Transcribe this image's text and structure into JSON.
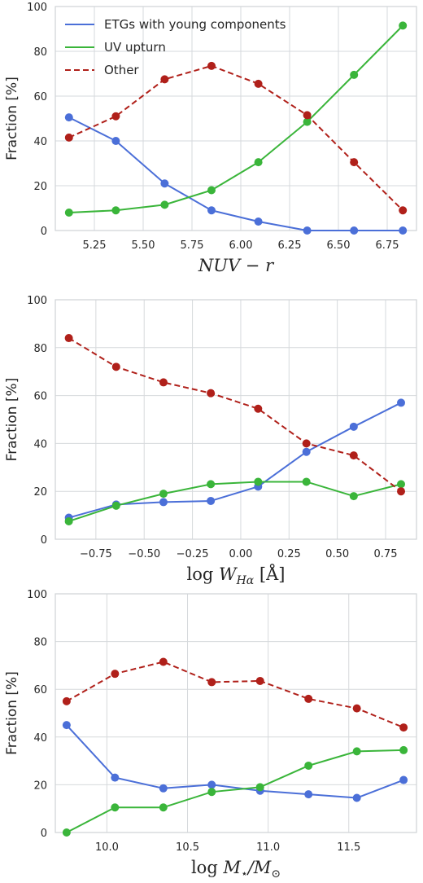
{
  "colors": {
    "etg": "#4b6fd8",
    "uv": "#3ab53a",
    "other": "#b0201a",
    "grid": "#d6d9dc",
    "axis": "#cfd3d6"
  },
  "legend": {
    "placement": "upper-left",
    "entries": [
      {
        "label": "ETGs with young components",
        "series": 0,
        "style": "solid"
      },
      {
        "label": "UV upturn",
        "series": 1,
        "style": "solid"
      },
      {
        "label": "Other",
        "series": 2,
        "style": "dashed"
      }
    ]
  },
  "chart_data": [
    {
      "type": "line",
      "ylabel": "Fraction [%]",
      "xlabel_parts": [
        {
          "text": "NUV",
          "italic": true
        },
        {
          "text": " − ",
          "italic": false
        },
        {
          "text": "r",
          "italic": true
        }
      ],
      "ylim": [
        0,
        100
      ],
      "xlim": [
        5.05,
        6.9
      ],
      "yticks": [
        0,
        20,
        40,
        60,
        80,
        100
      ],
      "yticklabels": [
        "0",
        "20",
        "40",
        "60",
        "80",
        "100"
      ],
      "xticks": [
        5.25,
        5.5,
        5.75,
        6.0,
        6.25,
        6.5,
        6.75
      ],
      "xticklabels": [
        "5.25",
        "5.50",
        "5.75",
        "6.00",
        "6.25",
        "6.50",
        "6.75"
      ],
      "grid": true,
      "x": [
        5.12,
        5.36,
        5.61,
        5.85,
        6.09,
        6.34,
        6.58,
        6.83
      ],
      "series": [
        {
          "name": "ETGs with young components",
          "values": [
            50.5,
            40.0,
            21.0,
            9.0,
            4.0,
            0.0,
            0.0,
            0.0
          ]
        },
        {
          "name": "UV upturn",
          "values": [
            8.0,
            9.0,
            11.5,
            18.0,
            30.5,
            48.5,
            69.5,
            91.5
          ]
        },
        {
          "name": "Other",
          "values": [
            41.5,
            51.0,
            67.5,
            73.5,
            65.5,
            51.5,
            30.5,
            9.0
          ]
        }
      ]
    },
    {
      "type": "line",
      "ylabel": "Fraction [%]",
      "xlabel_parts": [
        {
          "text": "log ",
          "italic": false
        },
        {
          "text": "W",
          "italic": true
        },
        {
          "text": "Hα",
          "italic": true,
          "sub": true
        },
        {
          "text": " [Å]",
          "italic": false
        }
      ],
      "ylim": [
        0,
        100
      ],
      "xlim": [
        -0.96,
        0.91
      ],
      "yticks": [
        0,
        20,
        40,
        60,
        80,
        100
      ],
      "yticklabels": [
        "0",
        "20",
        "40",
        "60",
        "80",
        "100"
      ],
      "xticks": [
        -0.75,
        -0.5,
        -0.25,
        0.0,
        0.25,
        0.5,
        0.75
      ],
      "xticklabels": [
        "−0.75",
        "−0.50",
        "−0.25",
        "0.00",
        "0.25",
        "0.50",
        "0.75"
      ],
      "grid": true,
      "x": [
        -0.89,
        -0.645,
        -0.4,
        -0.155,
        0.09,
        0.34,
        0.585,
        0.83
      ],
      "series": [
        {
          "name": "ETGs with young components",
          "values": [
            9.0,
            14.5,
            15.5,
            16.0,
            22.0,
            36.5,
            47.0,
            57.0
          ]
        },
        {
          "name": "UV upturn",
          "values": [
            7.5,
            14.0,
            19.0,
            23.0,
            24.0,
            24.0,
            18.0,
            23.0
          ]
        },
        {
          "name": "Other",
          "values": [
            84.0,
            72.0,
            65.5,
            61.0,
            54.5,
            40.0,
            35.0,
            20.0
          ]
        }
      ]
    },
    {
      "type": "line",
      "ylabel": "Fraction [%]",
      "xlabel_parts": [
        {
          "text": "log ",
          "italic": false
        },
        {
          "text": "M",
          "italic": true
        },
        {
          "text": "⋆",
          "italic": false,
          "sub": true
        },
        {
          "text": "/",
          "italic": true
        },
        {
          "text": "M",
          "italic": true
        },
        {
          "text": "⊙",
          "italic": false,
          "sub": true
        }
      ],
      "ylim": [
        0,
        100
      ],
      "xlim": [
        9.68,
        11.92
      ],
      "yticks": [
        0,
        20,
        40,
        60,
        80,
        100
      ],
      "yticklabels": [
        "0",
        "20",
        "40",
        "60",
        "80",
        "100"
      ],
      "xticks": [
        10.0,
        10.5,
        11.0,
        11.5
      ],
      "xticklabels": [
        "10.0",
        "10.5",
        "11.0",
        "11.5"
      ],
      "grid": true,
      "x": [
        9.75,
        10.05,
        10.35,
        10.65,
        10.95,
        11.25,
        11.55,
        11.84
      ],
      "series": [
        {
          "name": "ETGs with young components",
          "values": [
            45.0,
            23.0,
            18.5,
            20.0,
            17.5,
            16.0,
            14.5,
            22.0
          ]
        },
        {
          "name": "UV upturn",
          "values": [
            0.0,
            10.5,
            10.5,
            17.0,
            19.0,
            28.0,
            34.0,
            34.5
          ]
        },
        {
          "name": "Other",
          "values": [
            55.0,
            66.5,
            71.5,
            63.0,
            63.5,
            56.0,
            52.0,
            44.0
          ]
        }
      ]
    }
  ]
}
